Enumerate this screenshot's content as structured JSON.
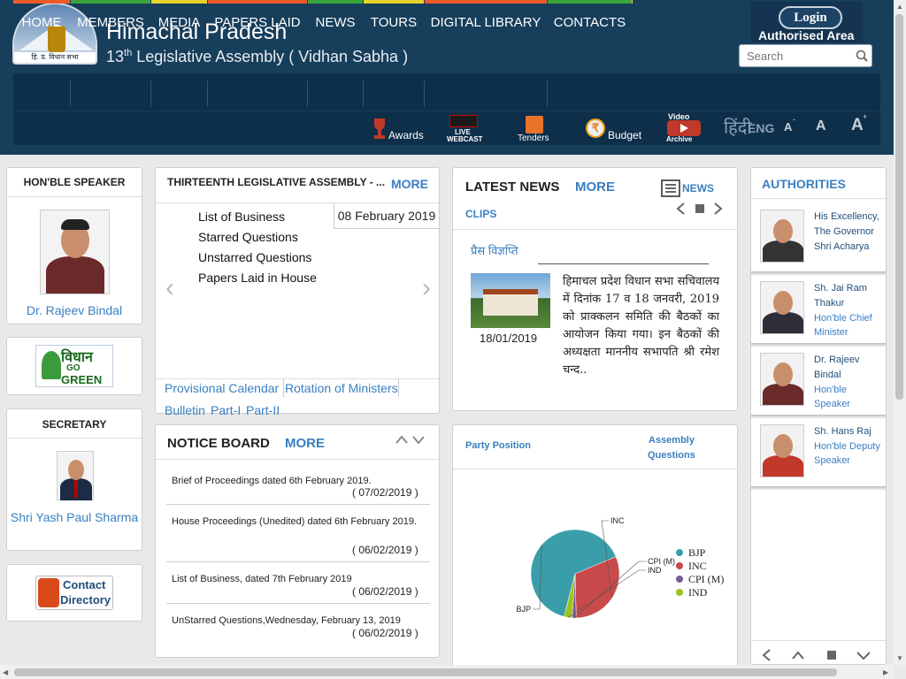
{
  "header": {
    "logo_caption": "हि. प्र. विधान सभा",
    "title": "Himachal Pradesh",
    "subtitle_prefix": "13",
    "subtitle_sup": "th",
    "subtitle_rest": " Legislative Assembly ( Vidhan Sabha )",
    "login": "Login",
    "authorised": "Authorised Area",
    "search_placeholder": "Search"
  },
  "nav": [
    {
      "label": "HOME"
    },
    {
      "label": "MEMBERS"
    },
    {
      "label": "MEDIA"
    },
    {
      "label": "PAPERS LAID"
    },
    {
      "label": "NEWS"
    },
    {
      "label": "TOURS"
    },
    {
      "label": "DIGITAL LIBRARY"
    },
    {
      "label": "CONTACTS"
    }
  ],
  "toolbar": {
    "awards": "Awards",
    "live": "LIVE",
    "webcast": "WEBCAST",
    "tenders": "Tenders",
    "budget": "Budget",
    "video": "Video",
    "archive": "Archive",
    "hindi": "हिंदी",
    "eng": "ENG",
    "font_small": "A",
    "font_normal": "A",
    "font_large": "A"
  },
  "speaker": {
    "title": "HON'BLE SPEAKER",
    "name": "Dr. Rajeev Bindal"
  },
  "green": {
    "vidhan": "विधान",
    "go": "GO",
    "green": "GREEN"
  },
  "secretary": {
    "title": "SECRETARY",
    "name": "Shri Yash Paul Sharma"
  },
  "contact": {
    "line1": "Contact",
    "line2": "Directory"
  },
  "assembly": {
    "title": "THIRTEENTH LEGISLATIVE ASSEMBLY - ...",
    "more": "MORE",
    "date": "08 February 2019",
    "items": [
      "List of Business",
      "Starred Questions",
      "Unstarred Questions",
      "Papers Laid in House"
    ],
    "links": [
      "Provisional Calendar",
      "Rotation of Ministers",
      "Bulletin",
      "Part-I",
      "Part-II"
    ]
  },
  "notice": {
    "title": "NOTICE BOARD",
    "more": "MORE",
    "items": [
      {
        "text": "Brief of Proceedings dated 6th February 2019.",
        "date": "( 07/02/2019 )"
      },
      {
        "text": "House Proceedings (Unedited) dated 6th February 2019.",
        "date": "( 06/02/2019 )"
      },
      {
        "text": "List of Business, dated 7th February 2019",
        "date": "( 06/02/2019 )"
      },
      {
        "text": "UnStarred Questions,Wednesday, February 13, 2019",
        "date": "( 06/02/2019 )"
      }
    ]
  },
  "news": {
    "title": "LATEST NEWS",
    "more": "MORE",
    "news_tab": "NEWS",
    "clips": "CLIPS",
    "headline": "प्रैस विज्ञप्ति",
    "date": "18/01/2019",
    "body": "हिमाचल प्रदेश विधान सभा सचिवालय में दिनांक 17 व 18 जनवरी, 2019 को प्राक्कलन समिति की बैठकों का आयोजन किया गया। इन बैठकों की अध्यक्षता माननीय सभापति श्री रमेश चन्द.."
  },
  "party": {
    "tab1": "Party Position",
    "tab2_line1": "Assembly",
    "tab2_line2": "Questions"
  },
  "chart_data": {
    "type": "pie",
    "labels": [
      "BJP",
      "INC",
      "CPI (M)",
      "IND"
    ],
    "values": [
      44,
      21,
      1,
      2
    ],
    "colors": [
      "#3a9eaa",
      "#c94a4a",
      "#7a5a96",
      "#9ac31c"
    ],
    "legend": "right"
  },
  "authorities": {
    "title": "AUTHORITIES",
    "items": [
      {
        "name": "His Excellency, The Governor Shri Acharya",
        "role": ""
      },
      {
        "name": "Sh. Jai Ram Thakur",
        "role": "Hon'ble Chief Minister"
      },
      {
        "name": "Dr. Rajeev Bindal",
        "role": "Hon'ble Speaker"
      },
      {
        "name": "Sh. Hans Raj",
        "role": "Hon'ble Deputy Speaker"
      }
    ]
  }
}
